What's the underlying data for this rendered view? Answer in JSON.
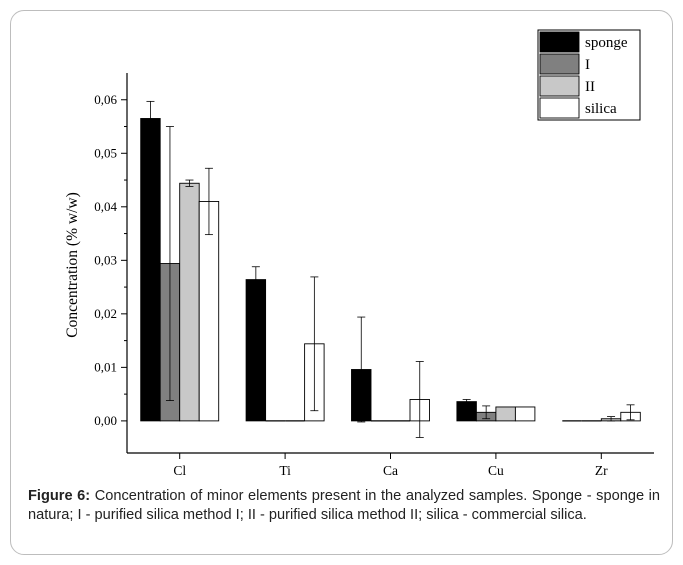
{
  "chart_data": {
    "type": "bar",
    "title": "",
    "xlabel": "",
    "ylabel": "Concentration (% w/w)",
    "ylim": [
      -0.006,
      0.065
    ],
    "yticks": [
      "0,00",
      "0,01",
      "0,02",
      "0,03",
      "0,04",
      "0,05",
      "0,06"
    ],
    "categories": [
      "Cl",
      "Ti",
      "Ca",
      "Cu",
      "Zr"
    ],
    "legend_position": "top-right",
    "series": [
      {
        "name": "sponge",
        "color": "#000000",
        "values": [
          0.0565,
          0.0264,
          0.0096,
          0.0036,
          0.0
        ],
        "errors": [
          0.0032,
          0.0024,
          0.0098,
          0.0004,
          null
        ]
      },
      {
        "name": "I",
        "color": "#808080",
        "values": [
          0.0294,
          0.0,
          0.0,
          0.0016,
          0.0
        ],
        "errors": [
          0.0256,
          null,
          null,
          0.0012,
          null
        ]
      },
      {
        "name": "II",
        "color": "#c8c8c8",
        "values": [
          0.0444,
          0.0,
          0.0,
          0.0026,
          0.0004
        ],
        "errors": [
          0.0006,
          null,
          null,
          null,
          0.0004
        ]
      },
      {
        "name": "silica",
        "color": "#ffffff",
        "values": [
          0.041,
          0.0144,
          0.004,
          0.0026,
          0.0016
        ],
        "errors": [
          0.0062,
          0.0125,
          0.0071,
          null,
          0.0014
        ]
      }
    ]
  },
  "caption": {
    "label": "Figure 6:",
    "text": " Concentration of minor elements present in the analyzed samples. Sponge - sponge in natura; I - purified silica method I; II - purified silica method II; silica - commercial silica."
  }
}
